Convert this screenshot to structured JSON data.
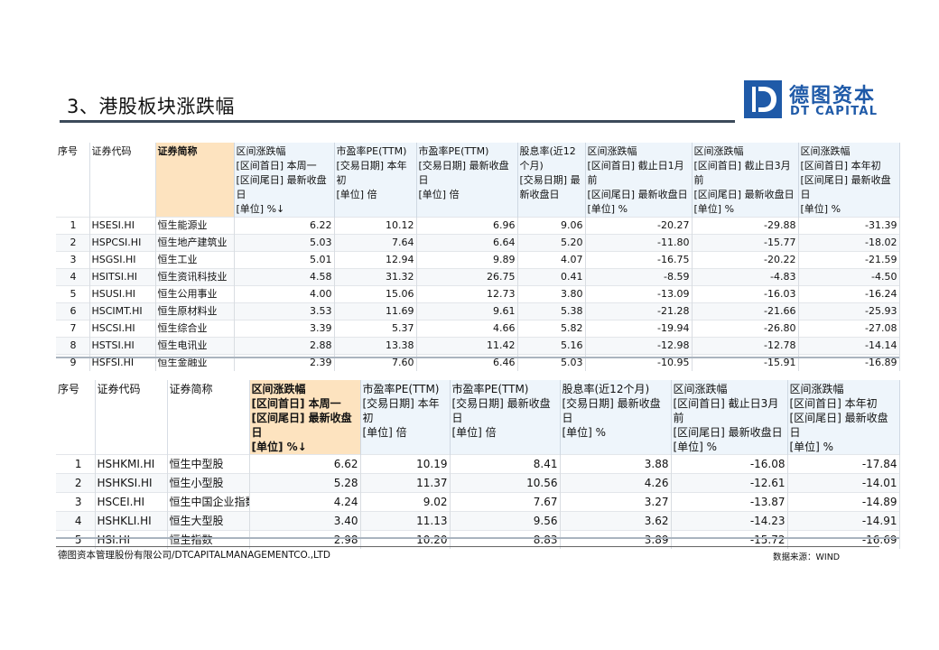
{
  "title": "3、港股板块涨跌幅",
  "logo": {
    "cn": "德图资本",
    "en": "DT CAPITAL"
  },
  "table1": {
    "headers": [
      "序号",
      "证券代码",
      "证券简称",
      "区间涨跌幅\n[区间首日] 本周一\n[区间尾日] 最新收盘日\n[单位] %↓",
      "市盈率PE(TTM)\n[交易日期] 本年初\n[单位] 倍",
      "市盈率PE(TTM)\n[交易日期] 最新收盘日\n[单位] 倍",
      "股息率(近12个月)\n[交易日期] 最新收盘日",
      "区间涨跌幅\n[区间首日] 截止日1月前\n[区间尾日] 最新收盘日\n[单位] %",
      "区间涨跌幅\n[区间首日] 截止日3月前\n[区间尾日] 最新收盘日\n[单位] %",
      "区间涨跌幅\n[区间首日] 本年初\n[区间尾日] 最新收盘日\n[单位] %"
    ],
    "rows": [
      [
        "1",
        "HSESI.HI",
        "恒生能源业",
        "6.22",
        "10.12",
        "6.96",
        "9.06",
        "-20.27",
        "-29.88",
        "-31.39"
      ],
      [
        "2",
        "HSPCSI.HI",
        "恒生地产建筑业",
        "5.03",
        "7.64",
        "6.64",
        "5.20",
        "-11.80",
        "-15.77",
        "-18.02"
      ],
      [
        "3",
        "HSGSI.HI",
        "恒生工业",
        "5.01",
        "12.94",
        "9.89",
        "4.07",
        "-16.75",
        "-20.22",
        "-21.59"
      ],
      [
        "4",
        "HSITSI.HI",
        "恒生资讯科技业",
        "4.58",
        "31.32",
        "26.75",
        "0.41",
        "-8.59",
        "-4.83",
        "-4.50"
      ],
      [
        "5",
        "HSUSI.HI",
        "恒生公用事业",
        "4.00",
        "15.06",
        "12.73",
        "3.80",
        "-13.09",
        "-16.03",
        "-16.24"
      ],
      [
        "6",
        "HSCIMT.HI",
        "恒生原材料业",
        "3.53",
        "11.69",
        "9.61",
        "5.38",
        "-21.28",
        "-21.66",
        "-25.93"
      ],
      [
        "7",
        "HSCSI.HI",
        "恒生综合业",
        "3.39",
        "5.37",
        "4.66",
        "5.82",
        "-19.94",
        "-26.80",
        "-27.08"
      ],
      [
        "8",
        "HSTSI.HI",
        "恒生电讯业",
        "2.88",
        "13.38",
        "11.42",
        "5.16",
        "-12.98",
        "-12.78",
        "-14.14"
      ],
      [
        "9",
        "HSFSI.HI",
        "恒生金融业",
        "2.39",
        "7.60",
        "6.46",
        "5.03",
        "-10.95",
        "-15.91",
        "-16.89"
      ]
    ]
  },
  "table2": {
    "headers": [
      "序号",
      "证券代码",
      "证券简称",
      "区间涨跌幅\n[区间首日] 本周一\n[区间尾日] 最新收盘日\n[单位] %↓",
      "市盈率PE(TTM)\n[交易日期] 本年初\n[单位] 倍",
      "市盈率PE(TTM)\n[交易日期] 最新收盘日\n[单位] 倍",
      "股息率(近12个月)\n[交易日期] 最新收盘日\n[单位] %",
      "区间涨跌幅\n[区间首日] 截止日3月前\n[区间尾日] 最新收盘日\n[单位] %",
      "区间涨跌幅\n[区间首日] 本年初\n[区间尾日] 最新收盘日\n[单位] %"
    ],
    "rows": [
      [
        "1",
        "HSHKMI.HI",
        "恒生中型股",
        "6.62",
        "10.19",
        "8.41",
        "3.88",
        "-16.08",
        "-17.84"
      ],
      [
        "2",
        "HSHKSI.HI",
        "恒生小型股",
        "5.28",
        "11.37",
        "10.56",
        "4.26",
        "-12.61",
        "-14.01"
      ],
      [
        "3",
        "HSCEI.HI",
        "恒生中国企业指数",
        "4.24",
        "9.02",
        "7.67",
        "3.27",
        "-13.87",
        "-14.89"
      ],
      [
        "4",
        "HSHKLI.HI",
        "恒生大型股",
        "3.40",
        "11.13",
        "9.56",
        "3.62",
        "-14.23",
        "-14.91"
      ],
      [
        "5",
        "HSI.HI",
        "恒生指数",
        "2.98",
        "10.20",
        "8.83",
        "3.89",
        "-15.72",
        "-16.69"
      ]
    ]
  },
  "footer": {
    "company": "德图资本管理股份有限公司/DTCAPITALMANAGEMENTCO.,LTD",
    "source": "数据来源：WIND"
  }
}
